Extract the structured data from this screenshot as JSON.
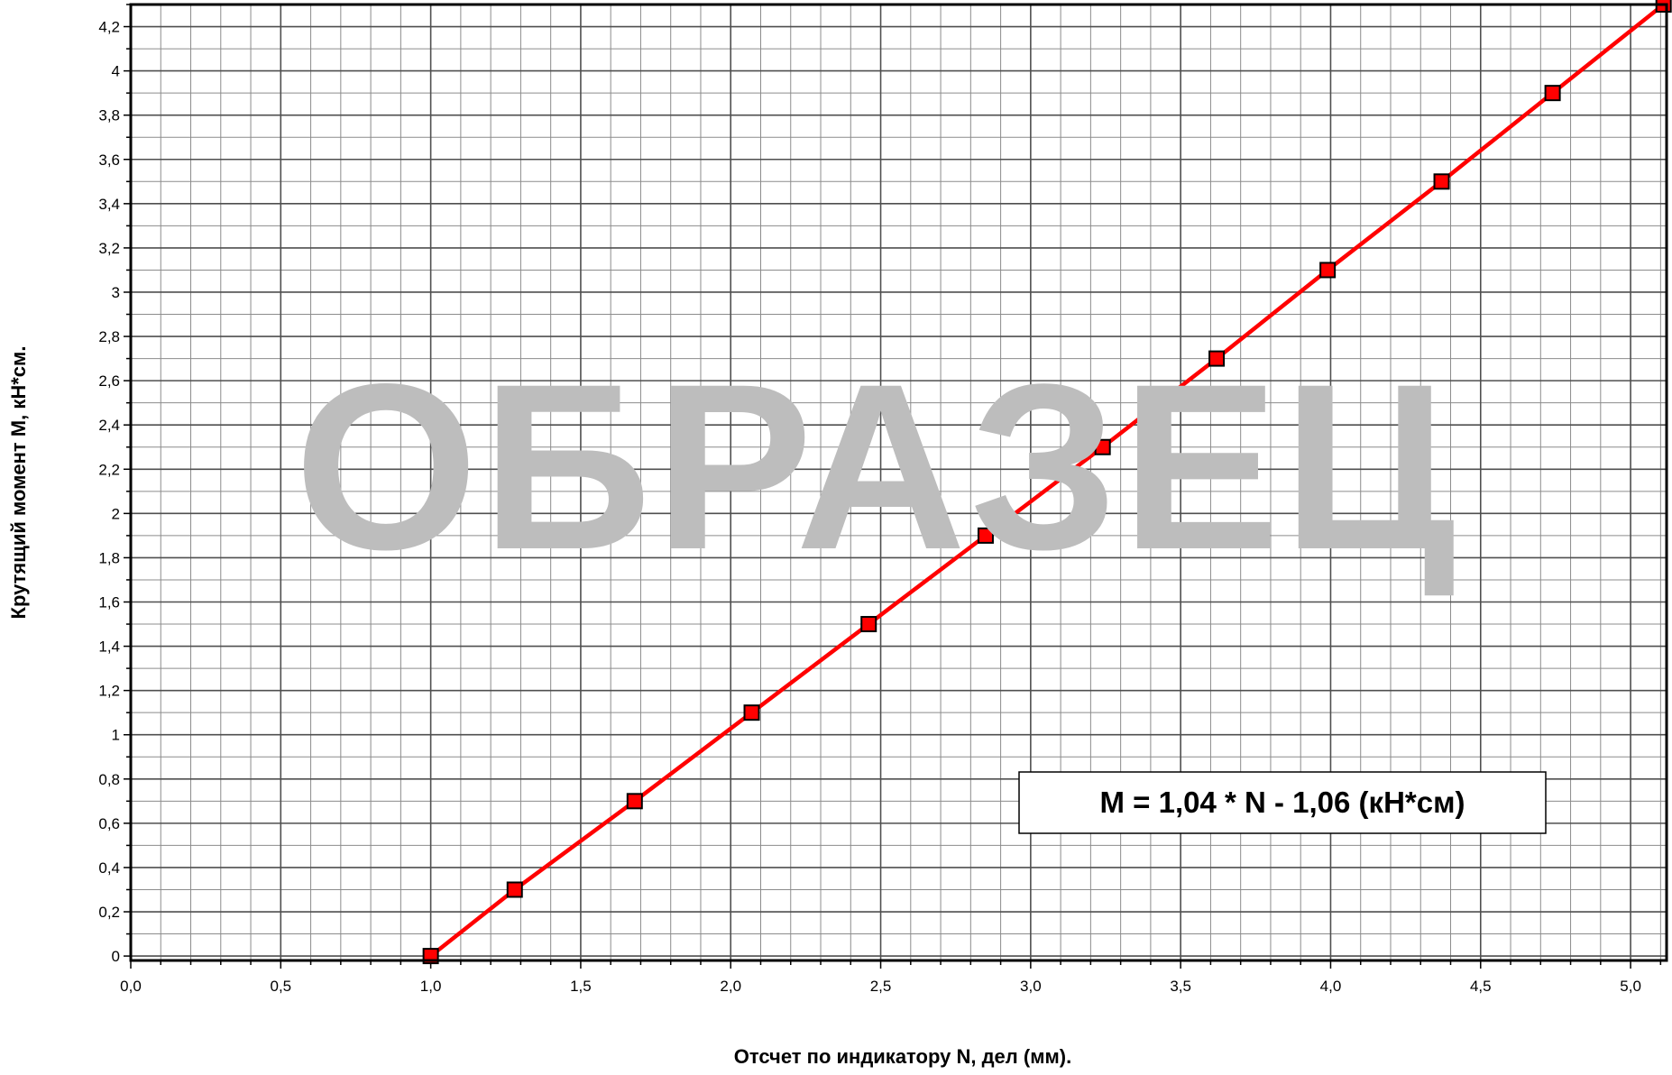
{
  "chart_data": {
    "type": "line",
    "title": "",
    "xlabel": "Отсчет по индикатору N, дел (мм).",
    "ylabel": "Крутящий момент M, кН*см.",
    "xlim": [
      0.0,
      5.12
    ],
    "ylim": [
      -0.02,
      4.3
    ],
    "grid": true,
    "x_ticks": [
      0.0,
      0.5,
      1.0,
      1.5,
      2.0,
      2.5,
      3.0,
      3.5,
      4.0,
      4.5,
      5.0
    ],
    "x_tick_labels": [
      "0,0",
      "0,5",
      "1,0",
      "1,5",
      "2,0",
      "2,5",
      "3,0",
      "3,5",
      "4,0",
      "4,5",
      "5,0"
    ],
    "y_ticks": [
      0,
      0.2,
      0.4,
      0.6,
      0.8,
      1,
      1.2,
      1.4,
      1.6,
      1.8,
      2,
      2.2,
      2.4,
      2.6,
      2.8,
      3,
      3.2,
      3.4,
      3.6,
      3.8,
      4,
      4.2
    ],
    "y_tick_labels": [
      "0",
      "0,2",
      "0,4",
      "0,6",
      "0,8",
      "1",
      "1,2",
      "1,4",
      "1,6",
      "1,8",
      "2",
      "2,2",
      "2,4",
      "2,6",
      "2,8",
      "3",
      "3,2",
      "3,4",
      "3,6",
      "3,8",
      "4",
      "4,2"
    ],
    "series": [
      {
        "x": [
          1.0,
          1.28,
          1.68,
          2.07,
          2.46,
          2.85,
          3.24,
          3.62,
          3.99,
          4.37,
          4.74,
          5.11
        ],
        "y": [
          0,
          0.3,
          0.7,
          1.1,
          1.5,
          1.9,
          2.3,
          2.7,
          3.1,
          3.5,
          3.9,
          4.3
        ],
        "color": "#ff0000",
        "marker": "square",
        "marker_color": "#ff0000"
      }
    ],
    "annotations": [
      {
        "text": "M = 1,04 * N - 1,06 (кН*см)"
      }
    ],
    "watermark": "ОБРАЗЕЦ",
    "colors": {
      "line": "#ff0000",
      "grid": "#7f7f7f",
      "watermark": "#bdbdbd",
      "axis": "#000000"
    }
  }
}
